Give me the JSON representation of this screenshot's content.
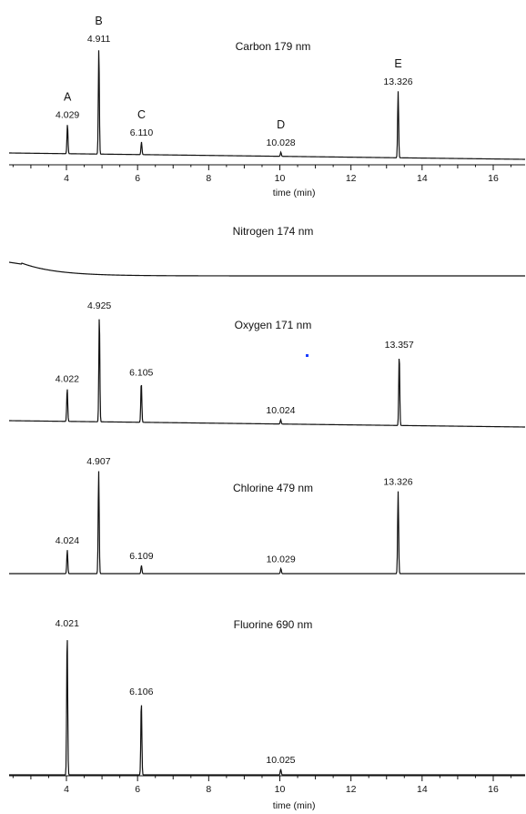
{
  "chart_data": [
    {
      "type": "line",
      "title": "Carbon 179 nm",
      "xlabel": "time (min)",
      "xlim": [
        2.5,
        16.8
      ],
      "x_ticks": [
        4,
        6,
        8,
        10,
        12,
        14,
        16
      ],
      "baseline": "gentle-decline",
      "peaks": [
        {
          "letter": "A",
          "label": "4.029",
          "time": 4.029,
          "height": 0.28
        },
        {
          "letter": "B",
          "label": "4.911",
          "time": 4.911,
          "height": 1.0
        },
        {
          "letter": "C",
          "label": "6.110",
          "time": 6.11,
          "height": 0.12
        },
        {
          "letter": "D",
          "label": "10.028",
          "time": 10.028,
          "height": 0.04
        },
        {
          "letter": "E",
          "label": "13.326",
          "time": 13.326,
          "height": 0.63
        }
      ]
    },
    {
      "type": "line",
      "title": "Nitrogen 174 nm",
      "xlim": [
        2.5,
        16.8
      ],
      "baseline": "early-decay",
      "peaks": []
    },
    {
      "type": "line",
      "title": "Oxygen 171 nm",
      "xlim": [
        2.5,
        16.8
      ],
      "baseline": "gentle-decline",
      "peaks": [
        {
          "label": "4.022",
          "time": 4.022,
          "height": 0.31
        },
        {
          "label": "4.925",
          "time": 4.925,
          "height": 1.0
        },
        {
          "label": "6.105",
          "time": 6.105,
          "height": 0.38
        },
        {
          "label": "10.024",
          "time": 10.024,
          "height": 0.04
        },
        {
          "label": "13.357",
          "time": 13.357,
          "height": 0.67
        }
      ]
    },
    {
      "type": "line",
      "title": "Chlorine 479 nm",
      "xlim": [
        2.5,
        16.8
      ],
      "baseline": "flat",
      "peaks": [
        {
          "label": "4.024",
          "time": 4.024,
          "height": 0.23
        },
        {
          "label": "4.907",
          "time": 4.907,
          "height": 1.0
        },
        {
          "label": "6.109",
          "time": 6.109,
          "height": 0.08
        },
        {
          "label": "10.029",
          "time": 10.029,
          "height": 0.05
        },
        {
          "label": "13.326",
          "time": 13.326,
          "height": 0.8
        }
      ]
    },
    {
      "type": "line",
      "title": "Fluorine 690 nm",
      "xlabel": "time (min)",
      "xlim": [
        2.5,
        16.8
      ],
      "x_ticks": [
        4,
        6,
        8,
        10,
        12,
        14,
        16
      ],
      "baseline": "flat",
      "peaks": [
        {
          "label": "4.021",
          "time": 4.021,
          "height": 1.0
        },
        {
          "label": "6.106",
          "time": 6.106,
          "height": 0.52
        },
        {
          "label": "10.025",
          "time": 10.025,
          "height": 0.04
        }
      ]
    }
  ]
}
